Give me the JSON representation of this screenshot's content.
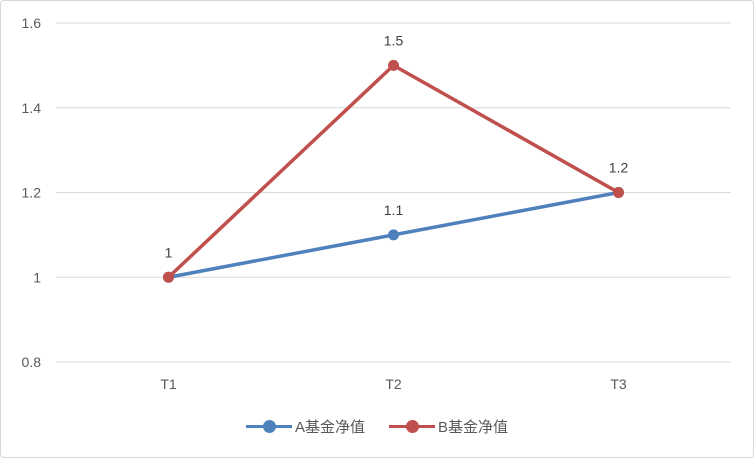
{
  "chart": {
    "background": "#FFFFFF",
    "border_color": "#D7D7D7",
    "gridline_color": "#D9D9D9",
    "tick_label_color": "#595959",
    "data_label_color": "#404040"
  },
  "chart_data": {
    "type": "line",
    "title": "",
    "xlabel": "",
    "ylabel": "",
    "categories": [
      "T1",
      "T2",
      "T3"
    ],
    "series": [
      {
        "name": "A基金净值",
        "color": "#4F81BD",
        "values": [
          1,
          1.1,
          1.2
        ],
        "data_labels": [
          "",
          "1.1",
          ""
        ]
      },
      {
        "name": "B基金净值",
        "color": "#C0504D",
        "values": [
          1,
          1.5,
          1.2
        ],
        "data_labels": [
          "1",
          "1.5",
          "1.2"
        ]
      }
    ],
    "ylim": [
      0.8,
      1.6
    ],
    "yticks": [
      {
        "value": 0.8,
        "label": "0.8"
      },
      {
        "value": 1.0,
        "label": "1"
      },
      {
        "value": 1.2,
        "label": "1.2"
      },
      {
        "value": 1.4,
        "label": "1.4"
      },
      {
        "value": 1.6,
        "label": "1.6"
      }
    ],
    "grid": "horizontal",
    "legend_position": "bottom",
    "marker": "circle"
  }
}
